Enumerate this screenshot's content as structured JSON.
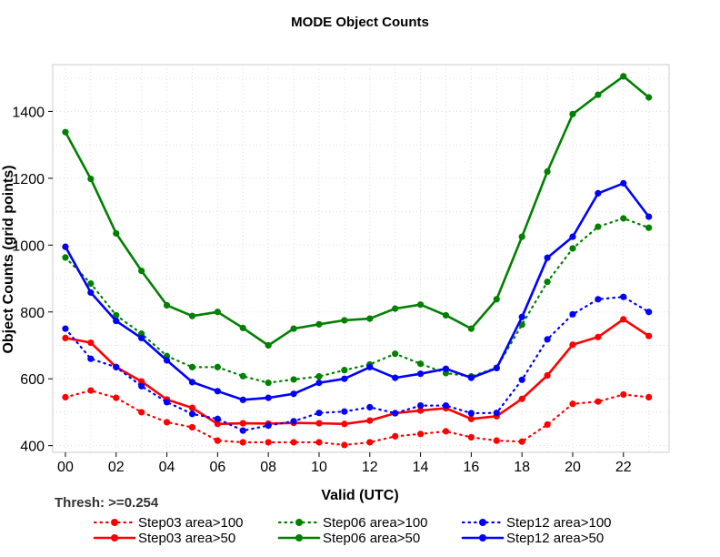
{
  "chart_data": {
    "type": "line",
    "title": "MODE Object Counts",
    "xlabel": "Valid (UTC)",
    "ylabel": "Object Counts (grid points)",
    "subtitle": "Thresh: >=0.254",
    "x": [
      0,
      1,
      2,
      3,
      4,
      5,
      6,
      7,
      8,
      9,
      10,
      11,
      12,
      13,
      14,
      15,
      16,
      17,
      18,
      19,
      20,
      21,
      22,
      23
    ],
    "xticks": [
      0,
      2,
      4,
      6,
      8,
      10,
      12,
      14,
      16,
      18,
      20,
      22
    ],
    "xtick_labels": [
      "00",
      "02",
      "04",
      "06",
      "08",
      "10",
      "12",
      "14",
      "16",
      "18",
      "20",
      "22"
    ],
    "xlim": [
      -0.5,
      23.8
    ],
    "ylim": [
      380,
      1540
    ],
    "yticks": [
      400,
      600,
      800,
      1000,
      1200,
      1400
    ],
    "grid": true,
    "legend_position": "bottom",
    "series": [
      {
        "name": "Step03 area>100",
        "color": "#ff0000",
        "style": "dotted",
        "values": [
          545,
          565,
          543,
          500,
          470,
          455,
          415,
          410,
          410,
          410,
          410,
          402,
          410,
          428,
          435,
          443,
          425,
          415,
          412,
          463,
          525,
          532,
          553,
          545
        ]
      },
      {
        "name": "Step03 area>50",
        "color": "#ff0000",
        "style": "solid",
        "values": [
          722,
          708,
          635,
          592,
          538,
          513,
          465,
          467,
          466,
          468,
          467,
          465,
          475,
          497,
          505,
          512,
          480,
          488,
          540,
          610,
          702,
          725,
          778,
          728
        ]
      },
      {
        "name": "Step06 area>100",
        "color": "#008000",
        "style": "dotted",
        "values": [
          963,
          885,
          790,
          735,
          668,
          635,
          635,
          608,
          588,
          598,
          607,
          626,
          643,
          675,
          645,
          617,
          607,
          633,
          762,
          890,
          990,
          1055,
          1080,
          1052
        ]
      },
      {
        "name": "Step06 area>50",
        "color": "#008000",
        "style": "solid",
        "values": [
          1338,
          1198,
          1035,
          923,
          820,
          788,
          800,
          752,
          700,
          750,
          763,
          775,
          780,
          810,
          822,
          790,
          750,
          838,
          1025,
          1220,
          1392,
          1450,
          1505,
          1442
        ]
      },
      {
        "name": "Step12 area>100",
        "color": "#0000ff",
        "style": "dotted",
        "values": [
          750,
          660,
          635,
          578,
          530,
          495,
          480,
          445,
          460,
          473,
          498,
          502,
          515,
          497,
          520,
          520,
          497,
          498,
          597,
          718,
          793,
          838,
          845,
          800
        ]
      },
      {
        "name": "Step12 area>50",
        "color": "#0000ff",
        "style": "solid",
        "values": [
          995,
          858,
          773,
          722,
          655,
          590,
          563,
          537,
          543,
          555,
          588,
          600,
          635,
          603,
          615,
          630,
          603,
          632,
          785,
          962,
          1025,
          1155,
          1185,
          1085
        ]
      }
    ]
  }
}
